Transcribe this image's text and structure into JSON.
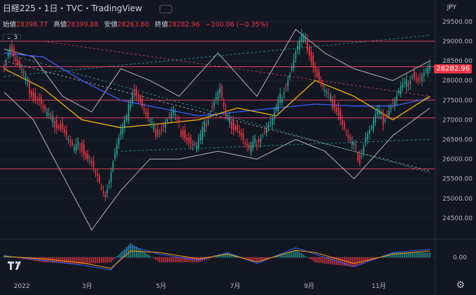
{
  "header": {
    "symbol": "日経225・1日・TVC・TradingView"
  },
  "ohlc": {
    "open_label": "始値",
    "open": "28398.77",
    "high_label": "高値",
    "high": "28399.88",
    "low_label": "安値",
    "low": "28263.60",
    "close_label": "終値",
    "close": "28282.96",
    "change": "−100.06 (−0.35%)"
  },
  "indicators_collapse": "3",
  "currency": "JPY",
  "last_price_tag": "28282.96",
  "colors": {
    "background": "#131722",
    "up": "#26a69a",
    "down": "#f23645",
    "bb": "#b2b5be",
    "ma_fast": "#f5b400",
    "ma_slow": "#3d5afe",
    "hline": "#e0405a",
    "macd": "#2962ff",
    "signal": "#ff9800"
  },
  "chart_data": [
    {
      "type": "candlestick",
      "price_axis": {
        "min": 24000,
        "max": 29800,
        "ticks": [
          "29500.00",
          "29000.00",
          "28500.00",
          "28000.00",
          "27500.00",
          "27000.00",
          "26500.00",
          "26000.00",
          "25500.00",
          "25000.00",
          "24500.00"
        ]
      },
      "x_axis": {
        "ticks": [
          "2022",
          "3月",
          "5月",
          "7月",
          "9月",
          "11月"
        ]
      },
      "close_path": [
        [
          0,
          28400
        ],
        [
          3,
          28900
        ],
        [
          6,
          28500
        ],
        [
          9,
          28200
        ],
        [
          12,
          27900
        ],
        [
          15,
          27600
        ],
        [
          18,
          27500
        ],
        [
          21,
          27200
        ],
        [
          24,
          27000
        ],
        [
          27,
          26900
        ],
        [
          30,
          26800
        ],
        [
          33,
          26500
        ],
        [
          36,
          26200
        ],
        [
          39,
          26400
        ],
        [
          42,
          26100
        ],
        [
          45,
          25900
        ],
        [
          48,
          25500
        ],
        [
          51,
          25000
        ],
        [
          54,
          25500
        ],
        [
          57,
          26200
        ],
        [
          60,
          26700
        ],
        [
          63,
          27000
        ],
        [
          66,
          27800
        ],
        [
          69,
          27600
        ],
        [
          72,
          27200
        ],
        [
          75,
          26900
        ],
        [
          78,
          26700
        ],
        [
          81,
          26800
        ],
        [
          84,
          27000
        ],
        [
          87,
          27200
        ],
        [
          90,
          26800
        ],
        [
          93,
          26600
        ],
        [
          96,
          26400
        ],
        [
          99,
          26300
        ],
        [
          102,
          26700
        ],
        [
          105,
          27100
        ],
        [
          108,
          27500
        ],
        [
          111,
          27800
        ],
        [
          114,
          27000
        ],
        [
          117,
          26900
        ],
        [
          120,
          26800
        ],
        [
          123,
          26500
        ],
        [
          126,
          26200
        ],
        [
          129,
          26400
        ],
        [
          132,
          26600
        ],
        [
          135,
          26800
        ],
        [
          138,
          27000
        ],
        [
          141,
          27400
        ],
        [
          144,
          27800
        ],
        [
          147,
          28200
        ],
        [
          150,
          28700
        ],
        [
          153,
          29100
        ],
        [
          156,
          28900
        ],
        [
          159,
          28400
        ],
        [
          162,
          28000
        ],
        [
          165,
          27700
        ],
        [
          168,
          27500
        ],
        [
          171,
          27300
        ],
        [
          174,
          26900
        ],
        [
          177,
          26500
        ],
        [
          180,
          26300
        ],
        [
          183,
          26000
        ],
        [
          186,
          26600
        ],
        [
          189,
          26800
        ],
        [
          192,
          27200
        ],
        [
          195,
          27000
        ],
        [
          198,
          27300
        ],
        [
          201,
          27500
        ],
        [
          204,
          27800
        ],
        [
          207,
          27900
        ],
        [
          210,
          28200
        ],
        [
          213,
          28000
        ],
        [
          216,
          28150
        ],
        [
          219,
          28283
        ]
      ],
      "horizontal_levels": [
        29000,
        28350,
        27500,
        27050,
        25750
      ],
      "ma_fast_path": [
        [
          0,
          28300
        ],
        [
          20,
          27800
        ],
        [
          40,
          27000
        ],
        [
          60,
          26800
        ],
        [
          80,
          26900
        ],
        [
          100,
          27000
        ],
        [
          120,
          27300
        ],
        [
          140,
          27100
        ],
        [
          160,
          28000
        ],
        [
          180,
          27600
        ],
        [
          200,
          27000
        ],
        [
          219,
          27600
        ]
      ],
      "ma_slow_path": [
        [
          0,
          28700
        ],
        [
          20,
          28600
        ],
        [
          40,
          28000
        ],
        [
          60,
          27500
        ],
        [
          80,
          27300
        ],
        [
          100,
          27100
        ],
        [
          120,
          27200
        ],
        [
          140,
          27300
        ],
        [
          160,
          27400
        ],
        [
          180,
          27350
        ],
        [
          200,
          27350
        ],
        [
          219,
          27550
        ]
      ],
      "bb_upper_path": [
        [
          0,
          28800
        ],
        [
          15,
          28600
        ],
        [
          30,
          27600
        ],
        [
          45,
          27200
        ],
        [
          60,
          28300
        ],
        [
          75,
          28000
        ],
        [
          90,
          27600
        ],
        [
          110,
          28700
        ],
        [
          130,
          27600
        ],
        [
          150,
          29300
        ],
        [
          165,
          28700
        ],
        [
          180,
          28300
        ],
        [
          200,
          28000
        ],
        [
          219,
          28500
        ]
      ],
      "bb_lower_path": [
        [
          0,
          27700
        ],
        [
          15,
          27000
        ],
        [
          30,
          25600
        ],
        [
          45,
          24200
        ],
        [
          60,
          25200
        ],
        [
          75,
          26000
        ],
        [
          90,
          26000
        ],
        [
          110,
          26200
        ],
        [
          130,
          26000
        ],
        [
          150,
          26500
        ],
        [
          165,
          26200
        ],
        [
          180,
          25500
        ],
        [
          200,
          26600
        ],
        [
          219,
          27300
        ]
      ]
    },
    {
      "type": "macd",
      "zero_label": "0.00",
      "macd_path": [
        [
          0,
          5
        ],
        [
          20,
          -10
        ],
        [
          40,
          -25
        ],
        [
          55,
          -40
        ],
        [
          65,
          35
        ],
        [
          80,
          10
        ],
        [
          100,
          -10
        ],
        [
          115,
          15
        ],
        [
          130,
          -20
        ],
        [
          150,
          30
        ],
        [
          160,
          10
        ],
        [
          180,
          -30
        ],
        [
          200,
          15
        ],
        [
          219,
          25
        ]
      ],
      "signal_path": [
        [
          0,
          3
        ],
        [
          20,
          -5
        ],
        [
          40,
          -18
        ],
        [
          55,
          -35
        ],
        [
          65,
          20
        ],
        [
          80,
          15
        ],
        [
          100,
          -5
        ],
        [
          115,
          10
        ],
        [
          130,
          -15
        ],
        [
          150,
          22
        ],
        [
          160,
          15
        ],
        [
          180,
          -20
        ],
        [
          200,
          10
        ],
        [
          219,
          20
        ]
      ]
    }
  ]
}
